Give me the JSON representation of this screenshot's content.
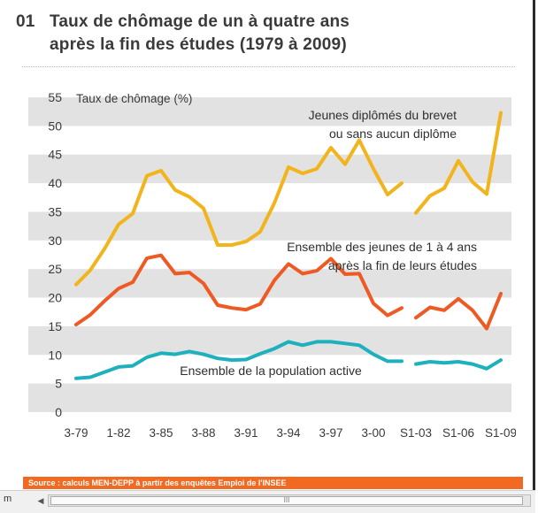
{
  "title": {
    "number": "01",
    "line1": "Taux de chômage de un à quatre ans",
    "line2": "après la fin des études (1979 à 2009)"
  },
  "source": "Source : calculs MEN-DEPP à partir des enquêtes Emploi de l'INSEE",
  "status_text": "m",
  "scroll_grip": "III",
  "colors": {
    "brevet": "#f2b41d",
    "ensemble_jeunes": "#ee5a24",
    "population_active": "#1fb0bd",
    "band": "#e2e2e2",
    "source_bar": "#f26a21"
  },
  "chart_data": {
    "type": "line",
    "title": "Taux de chômage de un à quatre ans après la fin des études (1979 à 2009)",
    "ylabel": "Taux de chômage (%)",
    "xlabel": "",
    "ylim": [
      0,
      55
    ],
    "yticks": [
      0,
      5,
      10,
      15,
      20,
      25,
      30,
      35,
      40,
      45,
      50,
      55
    ],
    "grid": "alternating horizontal bands",
    "x": [
      1979,
      1980,
      1981,
      1982,
      1983,
      1984,
      1985,
      1986,
      1987,
      1988,
      1989,
      1990,
      1991,
      1992,
      1993,
      1994,
      1995,
      1996,
      1997,
      1998,
      1999,
      2000,
      2001,
      2002,
      2003,
      2004,
      2005,
      2006,
      2007,
      2008,
      2009
    ],
    "xtick_labels": [
      {
        "x": 1979,
        "label": "3-79"
      },
      {
        "x": 1982,
        "label": "1-82"
      },
      {
        "x": 1985,
        "label": "3-85"
      },
      {
        "x": 1988,
        "label": "3-88"
      },
      {
        "x": 1991,
        "label": "3-91"
      },
      {
        "x": 1994,
        "label": "3-94"
      },
      {
        "x": 1997,
        "label": "3-97"
      },
      {
        "x": 2000,
        "label": "3-00"
      },
      {
        "x": 2003,
        "label": "S1-03"
      },
      {
        "x": 2006,
        "label": "S1-06"
      },
      {
        "x": 2009,
        "label": "S1-09"
      }
    ],
    "series_break_after_x": 2002,
    "series": [
      {
        "name": "Jeunes diplômés du brevet ou sans aucun diplôme",
        "label_lines": [
          "Jeunes diplômés du brevet",
          "ou sans aucun diplôme"
        ],
        "label_anchor": "end",
        "color": "#f2b41d",
        "values": [
          22.3,
          24.8,
          28.5,
          32.8,
          34.7,
          41.3,
          42.2,
          38.8,
          37.6,
          35.6,
          29.2,
          29.2,
          29.8,
          31.5,
          36.5,
          42.8,
          41.7,
          42.5,
          46.2,
          43.3,
          47.5,
          42.5,
          38.0,
          40.0,
          34.8,
          37.8,
          39.1,
          43.9,
          40.2,
          38.1,
          52.3
        ]
      },
      {
        "name": "Ensemble des jeunes de 1 à 4 ans après la fin de leurs études",
        "label_lines": [
          "Ensemble des jeunes de 1 à 4 ans",
          "après la fin de leurs études"
        ],
        "label_anchor": "end",
        "color": "#ee5a24",
        "values": [
          15.3,
          17.0,
          19.4,
          21.6,
          22.7,
          26.9,
          27.4,
          24.2,
          24.4,
          22.5,
          18.7,
          18.2,
          17.9,
          18.9,
          23.0,
          25.9,
          24.2,
          24.7,
          26.8,
          24.1,
          24.2,
          19.0,
          16.9,
          18.2,
          16.5,
          18.3,
          17.8,
          19.8,
          17.8,
          14.6,
          20.7
        ]
      },
      {
        "name": "Ensemble de la population active",
        "label_lines": [
          "Ensemble de la population active"
        ],
        "label_anchor": "middle",
        "color": "#1fb0bd",
        "values": [
          5.9,
          6.1,
          7.0,
          7.9,
          8.1,
          9.6,
          10.3,
          10.1,
          10.6,
          10.1,
          9.4,
          9.1,
          9.2,
          10.2,
          11.1,
          12.3,
          11.7,
          12.3,
          12.3,
          12.0,
          11.7,
          10.1,
          8.9,
          8.9,
          8.4,
          8.8,
          8.6,
          8.8,
          8.4,
          7.6,
          9.1
        ]
      }
    ]
  }
}
